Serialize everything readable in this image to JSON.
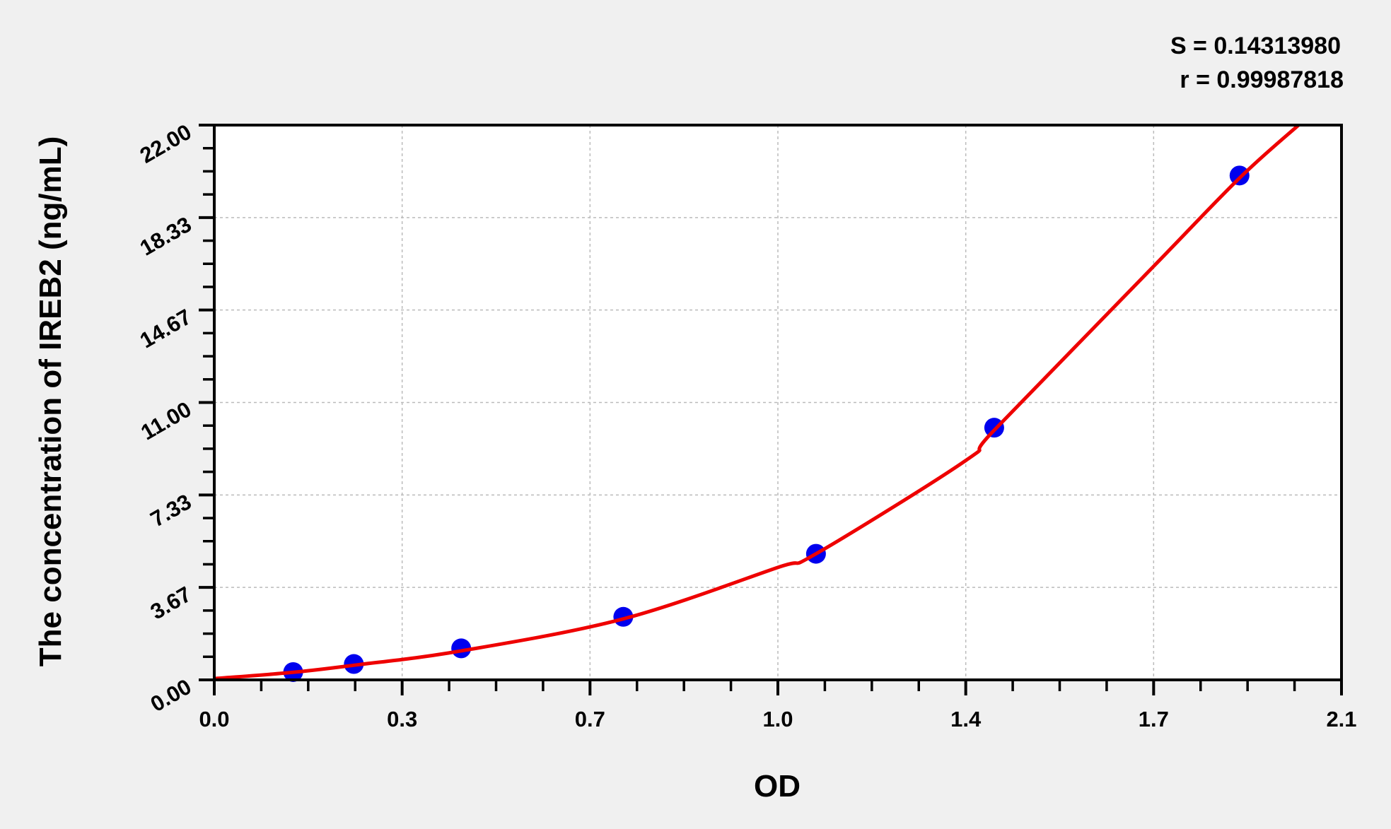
{
  "chart_data": {
    "type": "scatter",
    "title": "",
    "xlabel": "OD",
    "ylabel": "The concentration of IREB2 (ng/mL)",
    "xlim": [
      0,
      2.1
    ],
    "ylim": [
      0,
      22
    ],
    "x_ticks": [
      "0.0",
      "0.3",
      "0.7",
      "1.0",
      "1.4",
      "1.7",
      "2.1"
    ],
    "y_ticks": [
      "0.00",
      "3.67",
      "7.33",
      "11.00",
      "14.67",
      "18.33",
      "22.00"
    ],
    "grid": true,
    "stats": {
      "S": "S = 0.14313980",
      "r": "r = 0.99987818"
    },
    "colors": {
      "points": "#0000ee",
      "curve": "#ee0000",
      "background": "#f0f0f0",
      "plot": "#ffffff"
    },
    "series": [
      {
        "kind": "points",
        "x": [
          0.147,
          0.26,
          0.46,
          0.762,
          1.121,
          1.453,
          1.91
        ],
        "y": [
          0.31,
          0.63,
          1.25,
          2.5,
          5,
          10,
          20
        ]
      },
      {
        "kind": "fit-curve",
        "x": [
          0,
          0.147,
          0.26,
          0.46,
          0.762,
          1.05,
          1.121,
          1.4,
          1.453,
          1.75,
          1.91,
          2.02
        ],
        "y": [
          0.05,
          0.3,
          0.58,
          1.15,
          2.42,
          4.46,
          5.0,
          8.7,
          9.9,
          16.4,
          19.9,
          22.0
        ]
      }
    ]
  }
}
